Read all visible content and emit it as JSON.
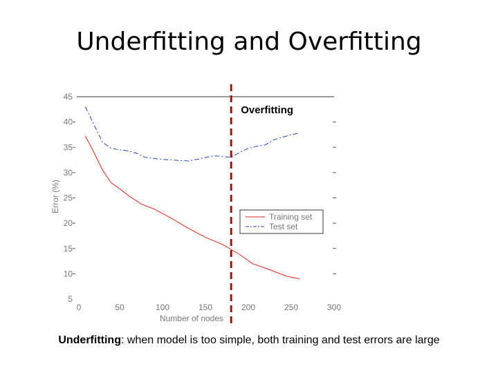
{
  "slide": {
    "title": "Underfitting and Overfitting",
    "caption_bold": "Underfitting",
    "caption_rest": ": when model is too simple, both training and test errors are large"
  },
  "chart_data": {
    "type": "line",
    "xlabel": "Number of nodes",
    "ylabel": "Error (%)",
    "xlim": [
      0,
      300
    ],
    "ylim": [
      5,
      45
    ],
    "xticks": [
      0,
      50,
      100,
      150,
      200,
      250,
      300
    ],
    "yticks": [
      5,
      10,
      15,
      20,
      25,
      30,
      35,
      40,
      45
    ],
    "grid": false,
    "legend_position": "lower-right",
    "series": [
      {
        "name": "Training set",
        "color": "#e8231e",
        "dash": "solid",
        "x": [
          10,
          20,
          30,
          40,
          50,
          60,
          75,
          90,
          110,
          130,
          150,
          170,
          190,
          205,
          225,
          245,
          260
        ],
        "y": [
          37.2,
          34.0,
          30.5,
          28.0,
          26.8,
          25.5,
          23.8,
          22.8,
          21.0,
          19.0,
          17.2,
          15.8,
          13.8,
          12.0,
          10.8,
          9.5,
          9.0
        ]
      },
      {
        "name": "Test set",
        "color": "#1f3fb8",
        "dash": "dashdot",
        "x": [
          10,
          20,
          30,
          40,
          50,
          60,
          70,
          80,
          90,
          100,
          110,
          120,
          130,
          140,
          150,
          160,
          170,
          180,
          190,
          200,
          210,
          220,
          230,
          240,
          250,
          260
        ],
        "y": [
          43,
          39.5,
          36.0,
          34.8,
          34.5,
          34.3,
          33.8,
          33.0,
          32.8,
          32.6,
          32.5,
          32.4,
          32.3,
          32.6,
          33.0,
          33.3,
          33.2,
          33.0,
          34.0,
          34.8,
          35.2,
          35.5,
          36.5,
          37.0,
          37.5,
          37.8
        ]
      }
    ],
    "annotation": {
      "text": "Overfitting",
      "x": 180,
      "color": "#a01010"
    }
  }
}
